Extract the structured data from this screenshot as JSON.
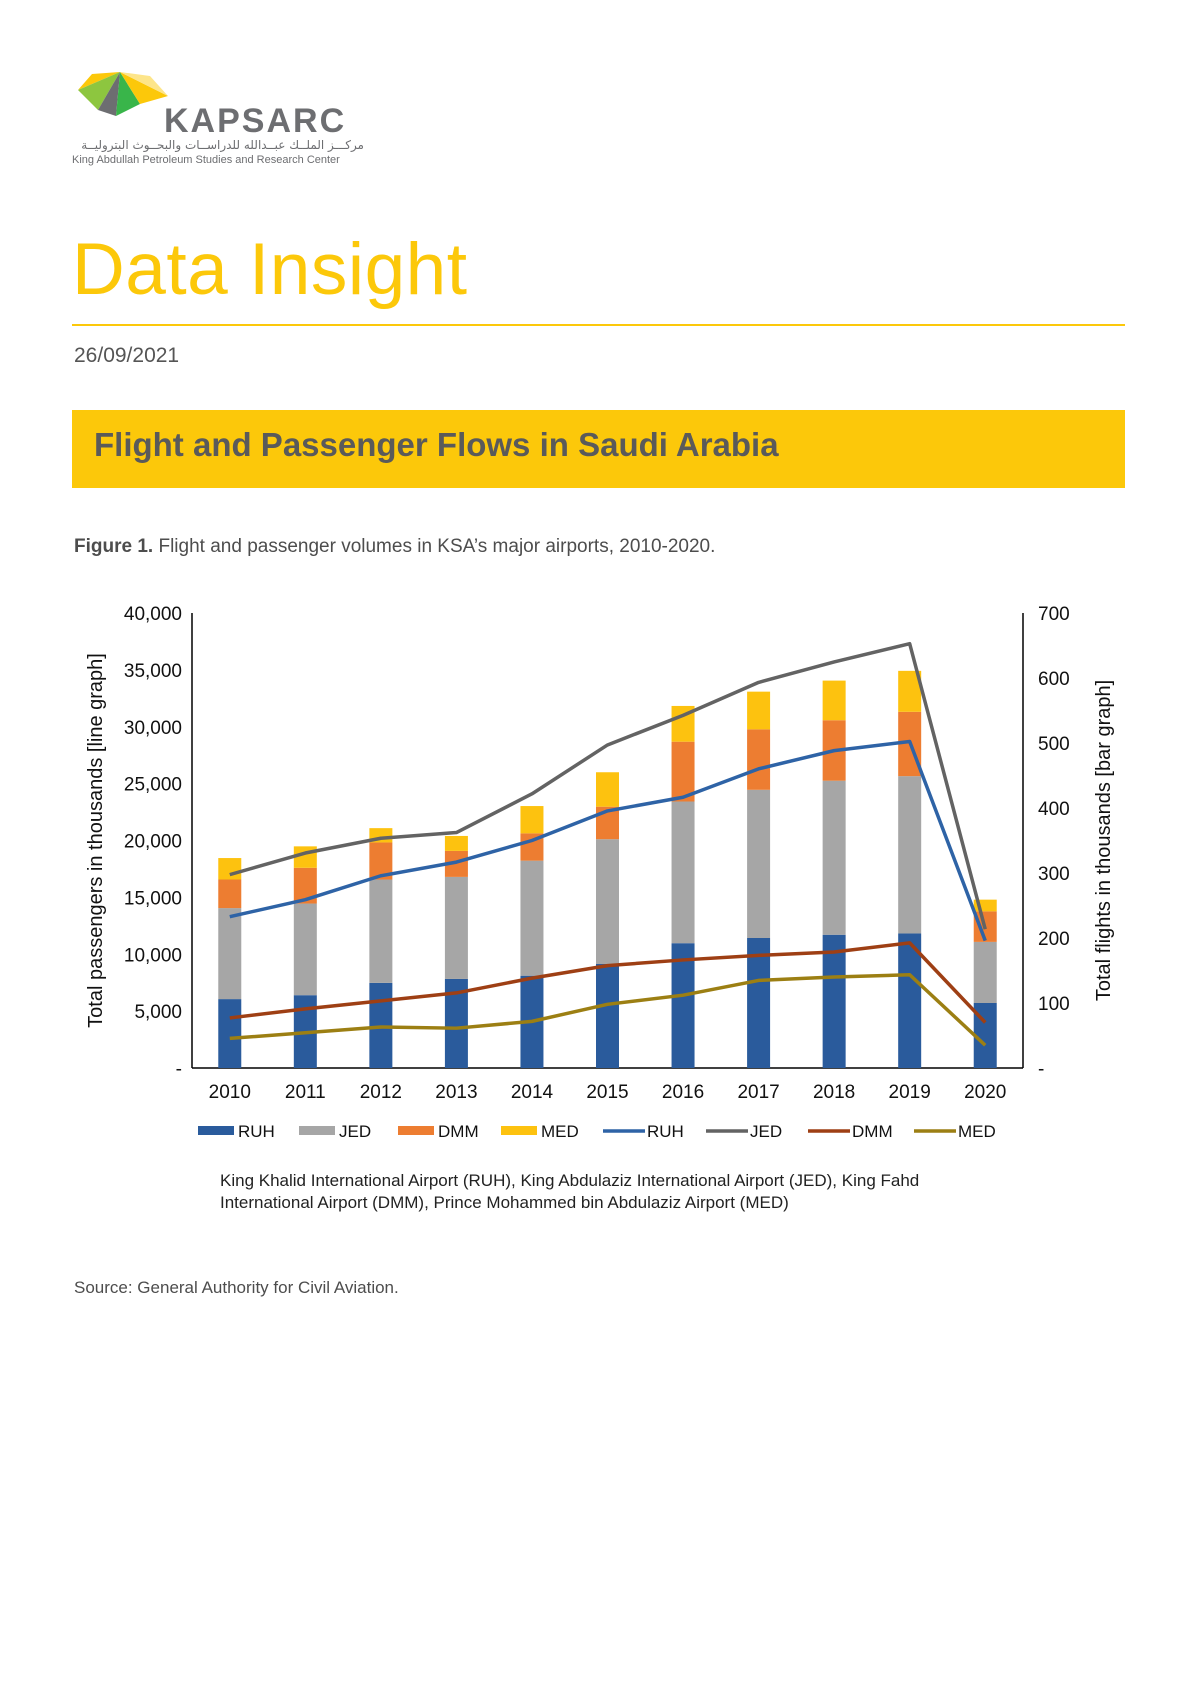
{
  "header": {
    "logo_name": "KAPSARC",
    "logo_arabic": "مركـــز الملــك عبــدالله للدراســات والبحــوث البتروليــة",
    "logo_english": "King Abdullah Petroleum Studies and Research Center",
    "doc_type": "Data Insight",
    "date": "26/09/2021"
  },
  "banner": {
    "title": "Flight and Passenger Flows in Saudi Arabia"
  },
  "figure": {
    "label": "Figure 1.",
    "caption": "Flight and passenger volumes in KSA’s major airports, 2010-2020.",
    "note": "King Khalid International Airport (RUH), King Abdulaziz International Airport (JED), King Fahd International Airport (DMM), Prince Mohammed bin Abdulaziz Airport (MED)",
    "source": "Source: General Authority for Civil Aviation."
  },
  "colors": {
    "brand_yellow": "#fcc80a",
    "ruh_bar": "#2a5b9c",
    "jed_bar": "#a6a6a6",
    "dmm_bar": "#ed7d31",
    "med_bar": "#fdc20f",
    "ruh_line": "#2e63a6",
    "jed_line": "#636363",
    "dmm_line": "#9e3f14",
    "med_line": "#9c7f13"
  },
  "chart_data": {
    "type": "bar+line",
    "categories": [
      "2010",
      "2011",
      "2012",
      "2013",
      "2014",
      "2015",
      "2016",
      "2017",
      "2018",
      "2019",
      "2020"
    ],
    "bar_series": [
      {
        "name": "RUH",
        "values": [
          106,
          112,
          131,
          137,
          142,
          160,
          192,
          200,
          205,
          207,
          100
        ]
      },
      {
        "name": "JED",
        "values": [
          140,
          141,
          159,
          157,
          177,
          192,
          218,
          228,
          237,
          242,
          94
        ]
      },
      {
        "name": "DMM",
        "values": [
          44,
          55,
          57,
          40,
          42,
          50,
          92,
          93,
          93,
          99,
          47
        ]
      },
      {
        "name": "MED",
        "values": [
          33,
          33,
          22,
          23,
          42,
          53,
          55,
          58,
          61,
          63,
          18
        ]
      }
    ],
    "line_series": [
      {
        "name": "RUH",
        "values": [
          13300,
          14800,
          16900,
          18100,
          20000,
          22600,
          23800,
          26300,
          27900,
          28700,
          11200
        ]
      },
      {
        "name": "JED",
        "values": [
          17000,
          18900,
          20200,
          20700,
          24100,
          28400,
          31000,
          33900,
          35700,
          37300,
          12200
        ]
      },
      {
        "name": "DMM",
        "values": [
          4400,
          5200,
          5900,
          6600,
          7900,
          9000,
          9500,
          9900,
          10200,
          11000,
          4000
        ]
      },
      {
        "name": "MED",
        "values": [
          2600,
          3100,
          3600,
          3500,
          4100,
          5600,
          6400,
          7700,
          8000,
          8200,
          2000
        ]
      }
    ],
    "y_left": {
      "label": "Total passengers in thousands [line graph]",
      "min": 0,
      "max": 40000,
      "ticks": [
        "-",
        "5,000",
        "10,000",
        "15,000",
        "20,000",
        "25,000",
        "30,000",
        "35,000",
        "40,000"
      ]
    },
    "y_right": {
      "label": "Total flights in thousands [bar graph]",
      "min": 0,
      "max": 700,
      "ticks": [
        "-",
        "100",
        "200",
        "300",
        "400",
        "500",
        "600",
        "700"
      ]
    },
    "legend": [
      "RUH",
      "JED",
      "DMM",
      "MED",
      "RUH",
      "JED",
      "DMM",
      "MED"
    ],
    "legend_position": "bottom"
  }
}
